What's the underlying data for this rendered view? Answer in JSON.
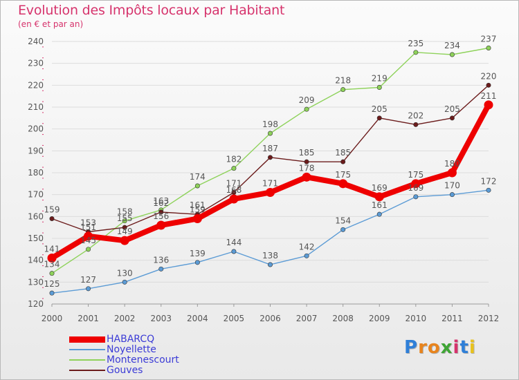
{
  "title": "Evolution des Impôts locaux par Habitant",
  "subtitle": "(en € et par an)",
  "logo_text": "Proxiti",
  "colors": {
    "title": "#d6336c",
    "axis": "#555555",
    "grid": "#dcdcdc",
    "legend_text": "#3b3bd6"
  },
  "chart_data": {
    "type": "line",
    "title": "Evolution des Impôts locaux par Habitant",
    "subtitle": "(en € et par an)",
    "categories": [
      "2000",
      "2001",
      "2002",
      "2003",
      "2004",
      "2005",
      "2006",
      "2007",
      "2008",
      "2009",
      "2010",
      "2011",
      "2012"
    ],
    "ylim": [
      120,
      240
    ],
    "yticks": [
      120,
      130,
      140,
      150,
      160,
      170,
      180,
      190,
      200,
      210,
      220,
      230,
      240
    ],
    "grid": true,
    "legend_position": "bottom-left",
    "series": [
      {
        "name": "HABARCQ",
        "color": "#ee0000",
        "emphasis": true,
        "values": [
          141,
          151,
          149,
          156,
          159,
          168,
          171,
          178,
          175,
          169,
          175,
          180,
          211
        ]
      },
      {
        "name": "Noyellette",
        "color": "#5b9bd5",
        "emphasis": false,
        "values": [
          125,
          127,
          130,
          136,
          139,
          144,
          138,
          142,
          154,
          161,
          169,
          170,
          172
        ]
      },
      {
        "name": "Montenescourt",
        "color": "#8ed25a",
        "emphasis": false,
        "values": [
          134,
          145,
          158,
          163,
          174,
          182,
          198,
          209,
          218,
          219,
          235,
          234,
          237
        ]
      },
      {
        "name": "Gouves",
        "color": "#6b1b1b",
        "emphasis": false,
        "values": [
          159,
          153,
          155,
          162,
          161,
          171,
          187,
          185,
          185,
          205,
          202,
          205,
          220
        ]
      }
    ]
  }
}
